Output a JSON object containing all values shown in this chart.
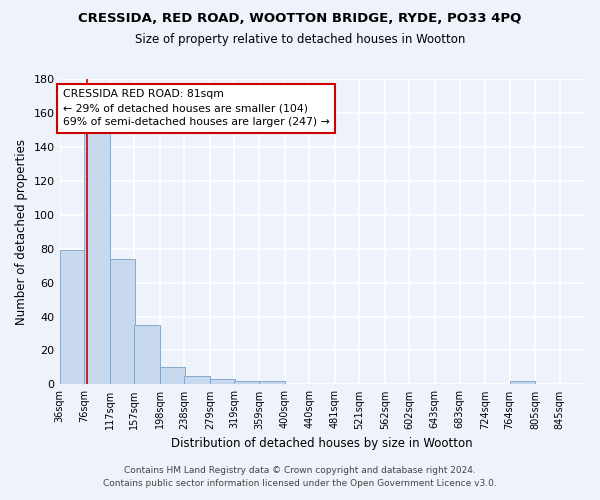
{
  "title1": "CRESSIDA, RED ROAD, WOOTTON BRIDGE, RYDE, PO33 4PQ",
  "title2": "Size of property relative to detached houses in Wootton",
  "xlabel": "Distribution of detached houses by size in Wootton",
  "ylabel": "Number of detached properties",
  "footnote1": "Contains HM Land Registry data © Crown copyright and database right 2024.",
  "footnote2": "Contains public sector information licensed under the Open Government Licence v3.0.",
  "bar_edges": [
    36,
    76,
    117,
    157,
    198,
    238,
    279,
    319,
    359,
    400,
    440,
    481,
    521,
    562,
    602,
    643,
    683,
    724,
    764,
    805,
    845
  ],
  "bar_heights": [
    79,
    152,
    74,
    35,
    10,
    5,
    3,
    2,
    2,
    0,
    0,
    0,
    0,
    0,
    0,
    0,
    0,
    0,
    2,
    0,
    0
  ],
  "bar_color": "#c8d8ee",
  "bar_edge_color": "#7a9fc4",
  "property_line_x": 81,
  "property_line_color": "#cc0000",
  "annotation_text": "CRESSIDA RED ROAD: 81sqm\n← 29% of detached houses are smaller (104)\n69% of semi-detached houses are larger (247) →",
  "annotation_box_color": "#ffffff",
  "annotation_box_edge": "#cc0000",
  "ylim": [
    0,
    180
  ],
  "yticks": [
    0,
    20,
    40,
    60,
    80,
    100,
    120,
    140,
    160,
    180
  ],
  "background_color": "#eef2fa",
  "grid_color": "#ffffff",
  "plot_bg_color": "#eef2fa"
}
